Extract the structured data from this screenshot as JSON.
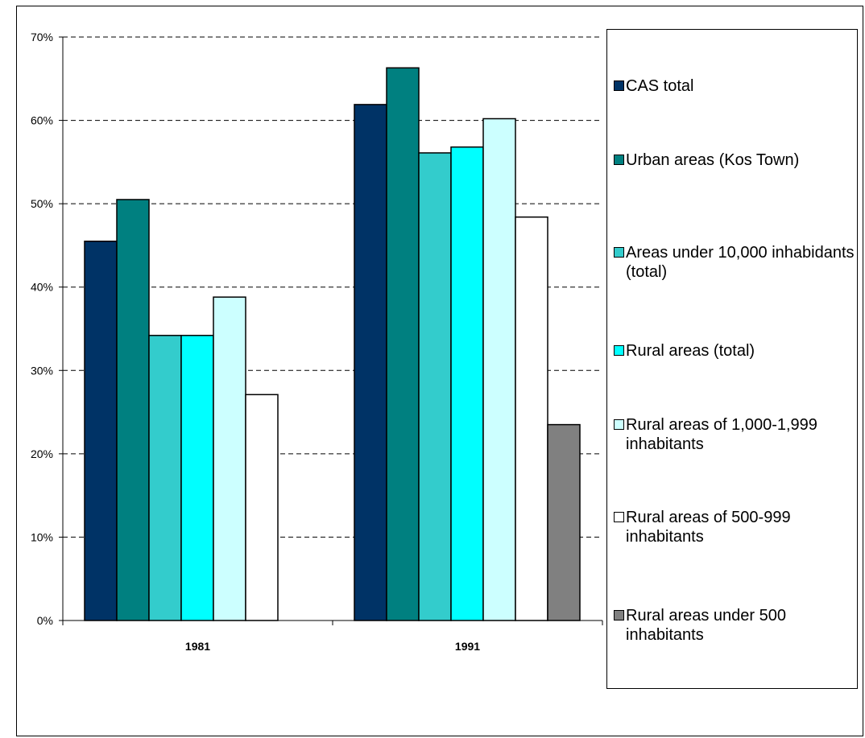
{
  "chart_data": {
    "type": "bar",
    "categories": [
      "1981",
      "1991"
    ],
    "ylim": [
      0,
      70
    ],
    "yticks": [
      "0%",
      "10%",
      "20%",
      "30%",
      "40%",
      "50%",
      "60%",
      "70%"
    ],
    "grid": true,
    "legend_position": "right",
    "series": [
      {
        "name": "CAS total",
        "color": "#003366",
        "values": [
          45.5,
          61.9
        ]
      },
      {
        "name": "Urban areas (Kos Town)",
        "color": "#008080",
        "values": [
          50.5,
          66.3
        ]
      },
      {
        "name": "Areas under 10,000 inhabidants (total)",
        "color": "#33CCCC",
        "values": [
          34.2,
          56.1
        ]
      },
      {
        "name": "Rural areas (total)",
        "color": "#00FFFF",
        "values": [
          34.2,
          56.8
        ]
      },
      {
        "name": "Rural areas of 1,000-1,999 inhabitants",
        "color": "#CCFFFF",
        "values": [
          38.8,
          60.2
        ]
      },
      {
        "name": "Rural areas of 500-999 inhabitants",
        "color": "#FFFFFF",
        "values": [
          27.1,
          48.4
        ]
      },
      {
        "name": "Rural areas under 500 inhabitants",
        "color": "#808080",
        "values": [
          null,
          23.5
        ]
      }
    ]
  }
}
